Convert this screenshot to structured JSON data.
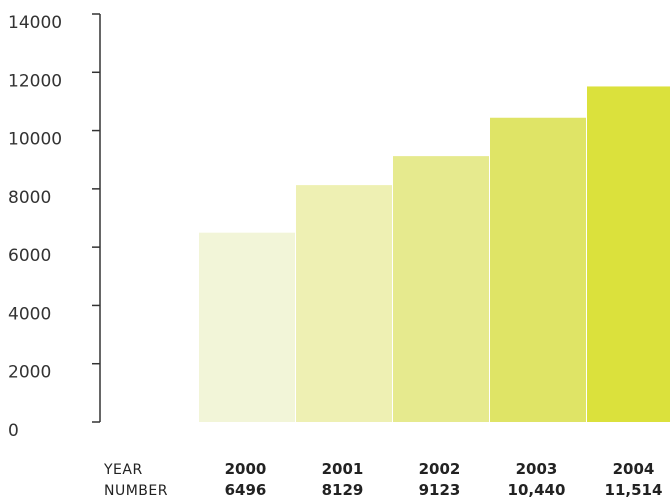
{
  "chart_data": {
    "type": "bar",
    "categories": [
      "2000",
      "2001",
      "2002",
      "2003",
      "2004"
    ],
    "values": [
      6496,
      8129,
      9123,
      10440,
      11514
    ],
    "value_labels": [
      "6496",
      "8129",
      "9123",
      "10,440",
      "11,514"
    ],
    "ylim": [
      0,
      14000
    ],
    "yticks": [
      "0",
      "2000",
      "4000",
      "6000",
      "8000",
      "10000",
      "12000",
      "14000"
    ],
    "ytick_values": [
      0,
      2000,
      4000,
      6000,
      8000,
      10000,
      12000,
      14000
    ],
    "row_headers": {
      "year": "YEAR",
      "number": "NUMBER"
    },
    "bar_colors": [
      "#f2f5d8",
      "#eef0b3",
      "#e6ea8e",
      "#dfe466",
      "#dbe13c"
    ],
    "axis_color": "#333333",
    "grid": false,
    "legend": "none"
  }
}
